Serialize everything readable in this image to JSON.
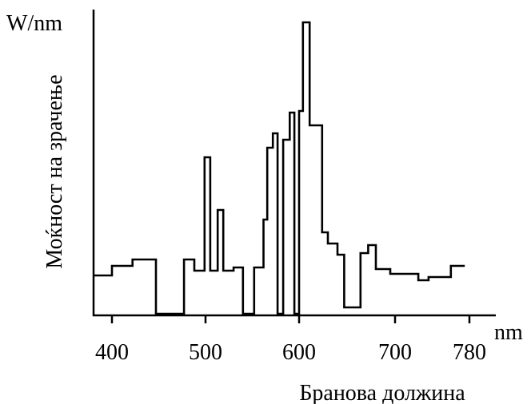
{
  "chart_data": {
    "type": "line",
    "title": "",
    "xlabel": "Бранова должина",
    "ylabel": "Моќност на зрачење",
    "x_unit": "nm",
    "y_unit": "W/nm",
    "xlim": [
      380,
      780
    ],
    "grid": false,
    "x_ticks": [
      400,
      500,
      600,
      700,
      780
    ],
    "series": [
      {
        "name": "",
        "style": "step",
        "points": [
          [
            380,
            48
          ],
          [
            400,
            48
          ],
          [
            400,
            60
          ],
          [
            422,
            60
          ],
          [
            422,
            68
          ],
          [
            447,
            68
          ],
          [
            447,
            0
          ],
          [
            477,
            0
          ],
          [
            477,
            68
          ],
          [
            488,
            68
          ],
          [
            488,
            54
          ],
          [
            499,
            54
          ],
          [
            499,
            196
          ],
          [
            505,
            196
          ],
          [
            505,
            54
          ],
          [
            513,
            54
          ],
          [
            513,
            130
          ],
          [
            519,
            130
          ],
          [
            519,
            54
          ],
          [
            530,
            54
          ],
          [
            530,
            58
          ],
          [
            540,
            58
          ],
          [
            540,
            0
          ],
          [
            552,
            0
          ],
          [
            552,
            58
          ],
          [
            562,
            58
          ],
          [
            562,
            118
          ],
          [
            566,
            118
          ],
          [
            566,
            208
          ],
          [
            572,
            208
          ],
          [
            572,
            226
          ],
          [
            577,
            226
          ],
          [
            577,
            0
          ],
          [
            583,
            0
          ],
          [
            583,
            218
          ],
          [
            590,
            218
          ],
          [
            590,
            252
          ],
          [
            595,
            252
          ],
          [
            595,
            0
          ],
          [
            600,
            0
          ],
          [
            600,
            254
          ],
          [
            604,
            254
          ],
          [
            604,
            365
          ],
          [
            611,
            365
          ],
          [
            611,
            236
          ],
          [
            624,
            236
          ],
          [
            624,
            102
          ],
          [
            630,
            102
          ],
          [
            630,
            88
          ],
          [
            640,
            88
          ],
          [
            640,
            74
          ],
          [
            647,
            74
          ],
          [
            647,
            8
          ],
          [
            664,
            8
          ],
          [
            664,
            76
          ],
          [
            672,
            76
          ],
          [
            672,
            86
          ],
          [
            680,
            86
          ],
          [
            680,
            56
          ],
          [
            695,
            56
          ],
          [
            695,
            50
          ],
          [
            725,
            50
          ],
          [
            725,
            42
          ],
          [
            736,
            42
          ],
          [
            736,
            46
          ],
          [
            760,
            46
          ],
          [
            760,
            60
          ],
          [
            775,
            60
          ]
        ]
      }
    ]
  }
}
